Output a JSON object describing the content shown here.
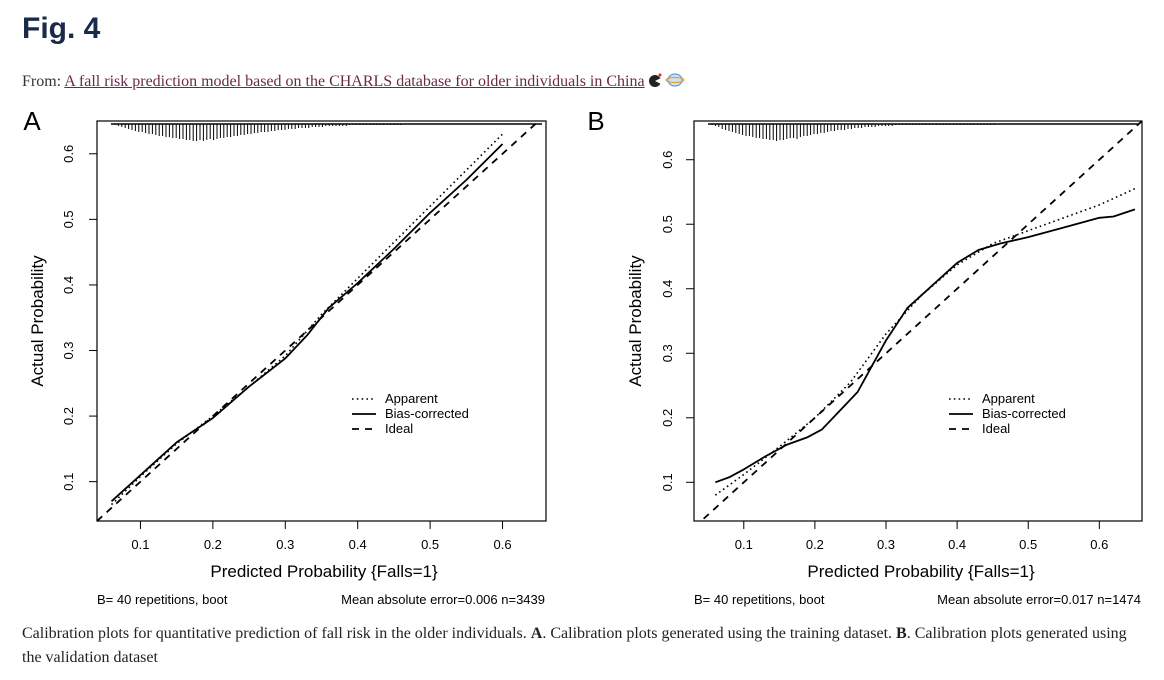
{
  "page": {
    "fig_title": "Fig. 4",
    "from_label": "From:",
    "article_link": "A fall risk prediction model based on the CHARLS database for older individuals in China",
    "caption_1": "Calibration plots for quantitative prediction of fall risk in the older individuals.",
    "caption_A": "A",
    "caption_2": ". Calibration plots generated using the training dataset.",
    "caption_B": "B",
    "caption_3": ". Calibration plots generated using the validation dataset"
  },
  "chart_data": [
    {
      "type": "line",
      "panel_label": "A",
      "xlabel": "Predicted Probability {Falls=1}",
      "ylabel": "Actual Probability",
      "xlim": [
        0.04,
        0.66
      ],
      "ylim": [
        0.04,
        0.65
      ],
      "x_ticks": [
        0.1,
        0.2,
        0.3,
        0.4,
        0.5,
        0.6
      ],
      "y_ticks": [
        0.1,
        0.2,
        0.3,
        0.4,
        0.5,
        0.6
      ],
      "legend": [
        "Apparent",
        "Bias-corrected",
        "Ideal"
      ],
      "legend_position": "bottom-right",
      "footer_left": "B= 40 repetitions, boot",
      "footer_right": "Mean absolute error=0.006 n=3439",
      "series": [
        {
          "name": "Apparent",
          "style": "dotted",
          "x": [
            0.06,
            0.1,
            0.15,
            0.2,
            0.25,
            0.3,
            0.35,
            0.4,
            0.45,
            0.5,
            0.55,
            0.6
          ],
          "y": [
            0.065,
            0.108,
            0.158,
            0.2,
            0.245,
            0.292,
            0.355,
            0.41,
            0.465,
            0.52,
            0.575,
            0.63
          ]
        },
        {
          "name": "Bias-corrected",
          "style": "solid",
          "x": [
            0.06,
            0.1,
            0.15,
            0.2,
            0.25,
            0.3,
            0.33,
            0.36,
            0.4,
            0.45,
            0.5,
            0.55,
            0.6
          ],
          "y": [
            0.07,
            0.11,
            0.16,
            0.197,
            0.245,
            0.288,
            0.323,
            0.365,
            0.403,
            0.455,
            0.51,
            0.56,
            0.615
          ]
        },
        {
          "name": "Ideal",
          "style": "dashed",
          "x": [
            0.04,
            0.66
          ],
          "y": [
            0.04,
            0.66
          ]
        }
      ],
      "spike_heights": [
        1,
        2,
        3,
        4,
        5,
        6,
        7,
        8,
        8,
        9,
        10,
        10,
        11,
        12,
        12,
        13,
        13,
        14,
        14,
        15,
        15,
        16,
        16,
        17,
        17,
        16,
        17,
        16,
        15,
        16,
        15,
        14,
        14,
        13,
        13,
        12,
        12,
        11,
        11,
        10,
        10,
        9,
        9,
        8,
        8,
        8,
        7,
        7,
        6,
        6,
        6,
        5,
        5,
        5,
        4,
        4,
        4,
        4,
        3,
        3,
        3,
        3,
        2,
        2,
        2,
        2,
        2,
        2,
        2,
        1,
        1,
        1,
        1,
        1,
        1,
        1,
        1,
        1,
        1,
        1,
        1,
        1,
        1,
        1,
        1
      ]
    },
    {
      "type": "line",
      "panel_label": "B",
      "xlabel": "Predicted Probability {Falls=1}",
      "ylabel": "Actual Probability",
      "xlim": [
        0.03,
        0.66
      ],
      "ylim": [
        0.04,
        0.66
      ],
      "x_ticks": [
        0.1,
        0.2,
        0.3,
        0.4,
        0.5,
        0.6
      ],
      "y_ticks": [
        0.1,
        0.2,
        0.3,
        0.4,
        0.5,
        0.6
      ],
      "legend": [
        "Apparent",
        "Bias-corrected",
        "Ideal"
      ],
      "legend_position": "bottom-right",
      "footer_left": "B= 40 repetitions, boot",
      "footer_right": "Mean absolute error=0.017 n=1474",
      "series": [
        {
          "name": "Apparent",
          "style": "dotted",
          "x": [
            0.06,
            0.1,
            0.15,
            0.2,
            0.25,
            0.3,
            0.35,
            0.4,
            0.45,
            0.5,
            0.55,
            0.6,
            0.65
          ],
          "y": [
            0.08,
            0.112,
            0.155,
            0.2,
            0.255,
            0.33,
            0.39,
            0.437,
            0.47,
            0.49,
            0.51,
            0.53,
            0.555
          ]
        },
        {
          "name": "Bias-corrected",
          "style": "solid",
          "x": [
            0.06,
            0.08,
            0.1,
            0.13,
            0.16,
            0.19,
            0.21,
            0.23,
            0.26,
            0.28,
            0.3,
            0.33,
            0.36,
            0.4,
            0.43,
            0.46,
            0.5,
            0.55,
            0.6,
            0.62,
            0.65
          ],
          "y": [
            0.1,
            0.108,
            0.12,
            0.14,
            0.158,
            0.17,
            0.182,
            0.205,
            0.24,
            0.28,
            0.32,
            0.37,
            0.4,
            0.44,
            0.46,
            0.47,
            0.48,
            0.495,
            0.51,
            0.512,
            0.523
          ]
        },
        {
          "name": "Ideal",
          "style": "dashed",
          "x": [
            0.03,
            0.66
          ],
          "y": [
            0.03,
            0.66
          ]
        }
      ],
      "spike_heights": [
        1,
        2,
        3,
        5,
        6,
        7,
        8,
        9,
        10,
        11,
        12,
        12,
        13,
        14,
        14,
        15,
        15,
        16,
        16,
        17,
        16,
        16,
        15,
        14,
        14,
        15,
        13,
        12,
        12,
        11,
        10,
        10,
        9,
        9,
        8,
        7,
        7,
        6,
        6,
        6,
        5,
        5,
        4,
        4,
        4,
        3,
        3,
        3,
        3,
        2,
        2,
        2,
        2,
        2,
        1,
        1,
        1,
        1,
        1,
        1,
        1,
        1,
        1,
        1,
        1,
        1,
        1,
        1,
        1,
        1,
        1,
        1,
        1,
        1,
        1,
        1,
        1,
        1,
        1,
        1,
        1,
        1,
        1,
        1
      ]
    }
  ]
}
